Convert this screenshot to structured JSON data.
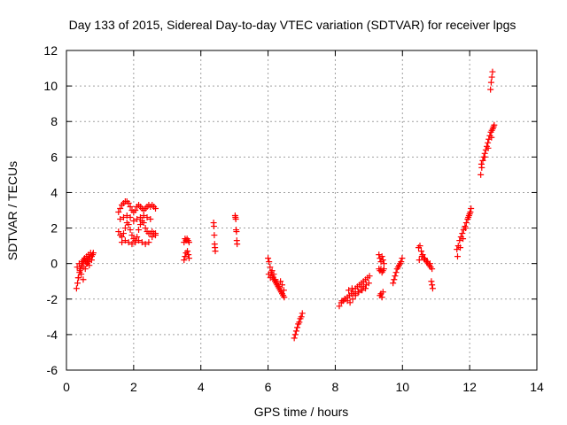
{
  "chart_data": {
    "type": "scatter",
    "title": "Day 133 of 2015, Sidereal Day-to-day VTEC variation (SDTVAR) for receiver lpgs",
    "xlabel": "GPS time / hours",
    "ylabel": "SDTVAR / TECUs",
    "xlim": [
      0,
      14
    ],
    "ylim": [
      -6,
      12
    ],
    "xticks": [
      0,
      2,
      4,
      6,
      8,
      10,
      12,
      14
    ],
    "yticks": [
      -6,
      -4,
      -2,
      0,
      2,
      4,
      6,
      8,
      10,
      12
    ],
    "grid": true,
    "marker": "+",
    "colors": {
      "series": "#ff0000",
      "grid": "#a0a0a0",
      "axis": "#000000"
    },
    "series": [
      {
        "name": "SDTVAR",
        "x": [
          0.3,
          0.33,
          0.36,
          0.39,
          0.42,
          0.45,
          0.48,
          0.51,
          0.54,
          0.57,
          0.6,
          0.63,
          0.66,
          0.69,
          0.72,
          0.75,
          0.78,
          0.8,
          0.35,
          0.4,
          0.45,
          0.5,
          0.55,
          0.6,
          0.65,
          0.7,
          0.75,
          0.32,
          0.38,
          0.44,
          0.5,
          0.56,
          0.62,
          0.68,
          1.55,
          1.6,
          1.65,
          1.7,
          1.75,
          1.8,
          1.85,
          1.9,
          1.95,
          2.0,
          2.05,
          2.1,
          2.15,
          2.2,
          2.25,
          2.3,
          2.35,
          2.4,
          2.45,
          2.5,
          2.55,
          2.6,
          2.65,
          1.55,
          1.6,
          1.65,
          1.7,
          1.75,
          1.8,
          1.85,
          1.9,
          1.95,
          2.0,
          2.05,
          2.1,
          2.15,
          2.2,
          2.25,
          2.3,
          2.35,
          2.4,
          2.45,
          2.5,
          2.55,
          2.6,
          2.65,
          1.6,
          1.7,
          1.8,
          1.9,
          2.0,
          2.1,
          2.2,
          2.3,
          2.4,
          2.5,
          1.65,
          1.75,
          1.85,
          1.95,
          2.05,
          2.15,
          2.25,
          2.35,
          2.45,
          2.55,
          2.65,
          3.5,
          3.53,
          3.56,
          3.59,
          3.62,
          3.65,
          3.5,
          3.53,
          3.56,
          3.6,
          3.63,
          3.65,
          4.38,
          4.39,
          4.4,
          4.41,
          4.42,
          4.43,
          5.02,
          5.03,
          5.04,
          5.05,
          5.06,
          5.07,
          5.08,
          6.0,
          6.03,
          6.06,
          6.09,
          6.12,
          6.15,
          6.18,
          6.21,
          6.24,
          6.27,
          6.3,
          6.33,
          6.36,
          6.39,
          6.42,
          6.45,
          6.48,
          6.02,
          6.07,
          6.12,
          6.17,
          6.22,
          6.27,
          6.32,
          6.37,
          6.42,
          6.47,
          6.78,
          6.81,
          6.84,
          6.87,
          6.9,
          6.93,
          6.96,
          6.99,
          7.02,
          8.12,
          8.18,
          8.24,
          8.3,
          8.36,
          8.42,
          8.48,
          8.54,
          8.6,
          8.66,
          8.72,
          8.78,
          8.84,
          8.9,
          8.96,
          9.02,
          8.2,
          8.28,
          8.36,
          8.44,
          8.52,
          8.6,
          8.68,
          8.76,
          8.84,
          8.92,
          9.0,
          8.4,
          8.5,
          8.6,
          8.7,
          8.8,
          8.9,
          9.3,
          9.33,
          9.36,
          9.39,
          9.42,
          9.45,
          9.3,
          9.33,
          9.36,
          9.39,
          9.42,
          9.45,
          9.33,
          9.36,
          9.39,
          9.42,
          9.72,
          9.75,
          9.78,
          9.81,
          9.84,
          9.87,
          9.9,
          9.93,
          9.96,
          9.99,
          10.48,
          10.52,
          10.56,
          10.6,
          10.64,
          10.68,
          10.72,
          10.76,
          10.8,
          10.84,
          10.88,
          10.5,
          10.58,
          10.66,
          10.74,
          10.82,
          10.86,
          10.88,
          10.9,
          11.62,
          11.66,
          11.7,
          11.74,
          11.78,
          11.82,
          11.86,
          11.9,
          11.94,
          11.98,
          12.02,
          12.04,
          11.64,
          11.72,
          11.8,
          11.88,
          11.96,
          12.0,
          12.33,
          12.36,
          12.39,
          12.42,
          12.45,
          12.48,
          12.51,
          12.54,
          12.57,
          12.6,
          12.63,
          12.66,
          12.69,
          12.71,
          12.73,
          12.35,
          12.45,
          12.55,
          12.65,
          12.62,
          12.64,
          12.66,
          12.68
        ],
        "y": [
          -1.4,
          -1.1,
          -0.8,
          -0.5,
          -0.3,
          -0.1,
          0.1,
          0.2,
          0.3,
          0.1,
          0.4,
          0.2,
          0.5,
          0.3,
          0.6,
          0.4,
          0.5,
          0.6,
          -0.8,
          -0.4,
          0.0,
          -0.2,
          0.2,
          0.0,
          0.1,
          0.3,
          0.2,
          -0.2,
          0.0,
          -0.6,
          -0.9,
          -0.3,
          0.0,
          -0.1,
          2.9,
          3.1,
          3.3,
          3.4,
          3.5,
          3.5,
          3.4,
          3.2,
          3.0,
          2.9,
          3.0,
          3.2,
          3.3,
          3.2,
          3.1,
          3.0,
          3.1,
          3.2,
          3.3,
          3.2,
          3.3,
          3.2,
          3.1,
          1.8,
          1.6,
          1.5,
          1.7,
          2.0,
          2.3,
          2.2,
          1.9,
          1.6,
          1.4,
          1.3,
          1.5,
          1.9,
          2.2,
          2.4,
          2.3,
          2.0,
          1.8,
          1.7,
          1.7,
          1.8,
          1.7,
          1.7,
          2.5,
          2.6,
          2.7,
          2.6,
          2.4,
          2.5,
          2.6,
          2.7,
          2.6,
          2.5,
          1.2,
          1.3,
          1.2,
          1.1,
          1.2,
          1.3,
          1.2,
          1.1,
          1.2,
          1.5,
          1.6,
          1.2,
          1.4,
          1.3,
          1.4,
          1.3,
          1.2,
          0.2,
          0.4,
          0.6,
          0.7,
          0.5,
          0.3,
          2.3,
          2.1,
          1.6,
          1.1,
          0.9,
          0.7,
          2.7,
          2.6,
          2.5,
          1.9,
          1.8,
          1.3,
          1.1,
          0.3,
          0.1,
          -0.2,
          -0.5,
          -0.7,
          -0.8,
          -0.9,
          -1.0,
          -1.1,
          -1.2,
          -1.3,
          -1.4,
          -1.5,
          -1.6,
          -1.7,
          -1.8,
          -1.9,
          -0.6,
          -0.8,
          -0.4,
          -0.6,
          -0.9,
          -1.1,
          -1.3,
          -1.0,
          -1.2,
          -1.5,
          -4.2,
          -4.0,
          -3.8,
          -3.6,
          -3.4,
          -3.3,
          -3.1,
          -3.0,
          -2.8,
          -2.4,
          -2.2,
          -2.1,
          -2.0,
          -1.9,
          -1.8,
          -1.7,
          -1.6,
          -1.4,
          -1.3,
          -1.2,
          -1.1,
          -1.0,
          -0.9,
          -0.8,
          -0.7,
          -2.1,
          -2.0,
          -2.1,
          -2.2,
          -2.0,
          -1.8,
          -1.6,
          -1.5,
          -1.3,
          -1.2,
          -1.1,
          -1.5,
          -1.4,
          -1.7,
          -1.6,
          -1.5,
          -1.4,
          -0.3,
          -0.4,
          -0.3,
          -0.5,
          -0.4,
          -0.3,
          0.5,
          0.3,
          0.1,
          0.4,
          0.2,
          0.0,
          -1.8,
          -1.7,
          -1.9,
          -1.6,
          -1.1,
          -0.9,
          -0.7,
          -0.5,
          -0.3,
          -0.2,
          -0.1,
          0.0,
          0.1,
          0.3,
          0.9,
          1.0,
          0.7,
          0.5,
          0.3,
          0.2,
          0.1,
          0.0,
          -0.1,
          -0.2,
          -0.3,
          0.2,
          0.4,
          0.3,
          0.1,
          0.0,
          -1.0,
          -1.2,
          -1.4,
          0.8,
          1.0,
          1.3,
          1.5,
          1.7,
          1.9,
          2.1,
          2.3,
          2.5,
          2.7,
          2.9,
          3.1,
          0.4,
          0.9,
          1.4,
          2.0,
          2.6,
          2.8,
          5.0,
          5.4,
          5.8,
          6.0,
          6.2,
          6.4,
          6.6,
          6.8,
          7.0,
          7.2,
          7.4,
          7.5,
          7.6,
          7.7,
          7.8,
          5.6,
          6.0,
          6.5,
          7.1,
          9.8,
          10.2,
          10.5,
          10.8
        ]
      }
    ]
  }
}
